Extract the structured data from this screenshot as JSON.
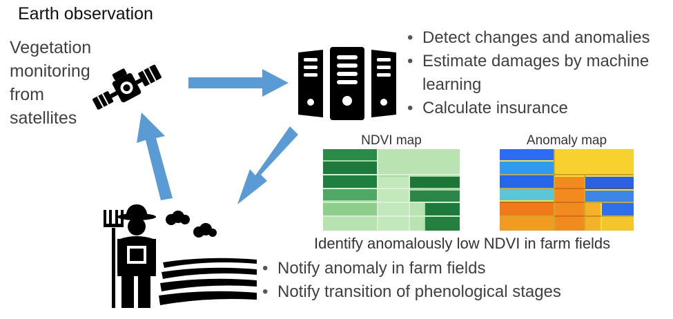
{
  "title": "Earth observation",
  "satellite": {
    "label_lines": [
      "Vegetation",
      "monitoring",
      "from",
      "satellites"
    ]
  },
  "server": {
    "bullets": [
      "Detect changes and anomalies",
      "Estimate damages by machine learning",
      "Calculate insurance"
    ]
  },
  "maps": {
    "ndvi_label": "NDVI map",
    "anomaly_label": "Anomaly map",
    "caption": "Identify anomalously low NDVI in farm fields"
  },
  "farm": {
    "bullets": [
      "Notify anomaly in farm fields",
      "Notify transition of phenological stages"
    ]
  },
  "colors": {
    "arrow": "#5b9bd5",
    "icon": "#000000",
    "ndvi_dark": "#1e7a3c",
    "ndvi_light": "#a8dba0",
    "anomaly_low": "#2a6df4",
    "anomaly_mid": "#f6e23a",
    "anomaly_high": "#f07a1a"
  }
}
